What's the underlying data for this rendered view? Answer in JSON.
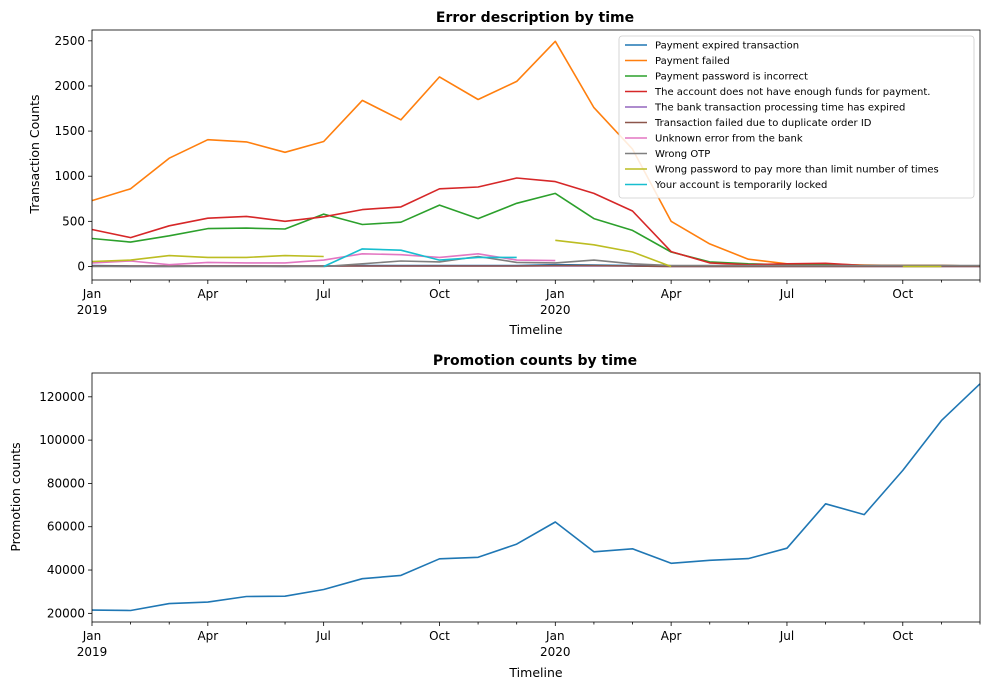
{
  "chart_data": [
    {
      "type": "line",
      "title": "Error description by time",
      "xlabel": "Timeline",
      "ylabel": "Transaction Counts",
      "x": [
        "2019-01",
        "2019-02",
        "2019-03",
        "2019-04",
        "2019-05",
        "2019-06",
        "2019-07",
        "2019-08",
        "2019-09",
        "2019-10",
        "2019-11",
        "2019-12",
        "2020-01",
        "2020-02",
        "2020-03",
        "2020-04",
        "2020-05",
        "2020-06",
        "2020-07",
        "2020-08",
        "2020-09",
        "2020-10",
        "2020-11",
        "2020-12"
      ],
      "xlim": [
        "2019-01",
        "2020-12"
      ],
      "ylim": [
        -150,
        2620
      ],
      "x_ticks": [
        {
          "x": "2019-01",
          "label": "Jan",
          "sublabel": "2019"
        },
        {
          "x": "2019-04",
          "label": "Apr",
          "sublabel": ""
        },
        {
          "x": "2019-07",
          "label": "Jul",
          "sublabel": ""
        },
        {
          "x": "2019-10",
          "label": "Oct",
          "sublabel": ""
        },
        {
          "x": "2020-01",
          "label": "Jan",
          "sublabel": "2020"
        },
        {
          "x": "2020-04",
          "label": "Apr",
          "sublabel": ""
        },
        {
          "x": "2020-07",
          "label": "Jul",
          "sublabel": ""
        },
        {
          "x": "2020-10",
          "label": "Oct",
          "sublabel": ""
        }
      ],
      "y_ticks": [
        0,
        500,
        1000,
        1500,
        2000,
        2500
      ],
      "legend_position": "top-right",
      "grid": false,
      "series": [
        {
          "name": "Payment expired transaction",
          "color": "#1f77b4",
          "values": [
            10,
            5,
            5,
            5,
            5,
            5,
            5,
            10,
            10,
            10,
            10,
            10,
            20,
            15,
            10,
            5,
            5,
            5,
            5,
            5,
            5,
            5,
            5,
            5
          ]
        },
        {
          "name": "Payment failed",
          "color": "#ff7f0e",
          "values": [
            730,
            860,
            1200,
            1405,
            1380,
            1265,
            1385,
            1840,
            1625,
            2100,
            1850,
            2050,
            2495,
            1760,
            1300,
            500,
            250,
            80,
            30,
            25,
            15,
            10,
            10,
            5
          ]
        },
        {
          "name": "Payment password is incorrect",
          "color": "#2ca02c",
          "values": [
            310,
            270,
            340,
            420,
            425,
            415,
            580,
            465,
            490,
            680,
            530,
            700,
            810,
            530,
            400,
            160,
            50,
            30,
            20,
            20,
            10,
            10,
            10,
            5
          ]
        },
        {
          "name": "The account does not have enough funds for payment.",
          "color": "#d62728",
          "values": [
            410,
            320,
            450,
            535,
            555,
            500,
            550,
            630,
            660,
            860,
            880,
            980,
            940,
            810,
            615,
            165,
            40,
            20,
            30,
            35,
            10,
            10,
            10,
            5
          ]
        },
        {
          "name": "The bank transaction processing time has expired",
          "color": "#9467bd",
          "values": [
            5,
            0,
            0,
            5,
            5,
            0,
            5,
            5,
            5,
            5,
            5,
            5,
            5,
            5,
            5,
            0,
            0,
            0,
            0,
            0,
            0,
            0,
            0,
            0
          ]
        },
        {
          "name": "Transaction failed due to duplicate order ID",
          "color": "#8c564b",
          "values": [
            5,
            5,
            5,
            5,
            5,
            5,
            5,
            5,
            5,
            5,
            5,
            5,
            10,
            10,
            5,
            0,
            0,
            0,
            0,
            0,
            0,
            0,
            0,
            0
          ]
        },
        {
          "name": "Unknown error from the bank",
          "color": "#e377c2",
          "values": [
            40,
            60,
            20,
            45,
            40,
            40,
            70,
            140,
            130,
            100,
            140,
            70,
            65,
            null,
            null,
            null,
            null,
            null,
            null,
            null,
            null,
            null,
            null,
            null
          ]
        },
        {
          "name": "Wrong OTP",
          "color": "#7f7f7f",
          "values": [
            0,
            0,
            0,
            0,
            0,
            0,
            0,
            30,
            60,
            50,
            110,
            45,
            40,
            70,
            30,
            10,
            10,
            10,
            10,
            10,
            10,
            10,
            10,
            10
          ]
        },
        {
          "name": "Wrong password to pay more than limit number of times",
          "color": "#bcbd22",
          "values": [
            55,
            70,
            120,
            100,
            100,
            120,
            110,
            null,
            null,
            null,
            null,
            null,
            290,
            240,
            160,
            0,
            null,
            null,
            null,
            null,
            null,
            0,
            0,
            null
          ]
        },
        {
          "name": "Your account is temporarily locked",
          "color": "#17becf",
          "values": [
            null,
            null,
            null,
            null,
            null,
            null,
            0,
            195,
            180,
            70,
            100,
            100,
            null,
            null,
            null,
            null,
            null,
            null,
            null,
            null,
            null,
            null,
            null,
            null
          ]
        }
      ]
    },
    {
      "type": "line",
      "title": "Promotion counts by time",
      "xlabel": "Timeline",
      "ylabel": "Promotion counts",
      "x": [
        "2019-01",
        "2019-02",
        "2019-03",
        "2019-04",
        "2019-05",
        "2019-06",
        "2019-07",
        "2019-08",
        "2019-09",
        "2019-10",
        "2019-11",
        "2019-12",
        "2020-01",
        "2020-02",
        "2020-03",
        "2020-04",
        "2020-05",
        "2020-06",
        "2020-07",
        "2020-08",
        "2020-09",
        "2020-10",
        "2020-11",
        "2020-12"
      ],
      "xlim": [
        "2019-01",
        "2020-12"
      ],
      "ylim": [
        16000,
        131000
      ],
      "x_ticks": [
        {
          "x": "2019-01",
          "label": "Jan",
          "sublabel": "2019"
        },
        {
          "x": "2019-04",
          "label": "Apr",
          "sublabel": ""
        },
        {
          "x": "2019-07",
          "label": "Jul",
          "sublabel": ""
        },
        {
          "x": "2019-10",
          "label": "Oct",
          "sublabel": ""
        },
        {
          "x": "2020-01",
          "label": "Jan",
          "sublabel": "2020"
        },
        {
          "x": "2020-04",
          "label": "Apr",
          "sublabel": ""
        },
        {
          "x": "2020-07",
          "label": "Jul",
          "sublabel": ""
        },
        {
          "x": "2020-10",
          "label": "Oct",
          "sublabel": ""
        }
      ],
      "y_ticks": [
        20000,
        40000,
        60000,
        80000,
        100000,
        120000
      ],
      "grid": false,
      "series": [
        {
          "color": "#1f77b4",
          "values": [
            21500,
            21300,
            24500,
            25200,
            27800,
            27900,
            31000,
            36000,
            37500,
            45200,
            45900,
            52000,
            62200,
            48400,
            49800,
            43100,
            44500,
            45300,
            50100,
            70600,
            65600,
            86000,
            109000,
            126000
          ]
        }
      ]
    }
  ]
}
